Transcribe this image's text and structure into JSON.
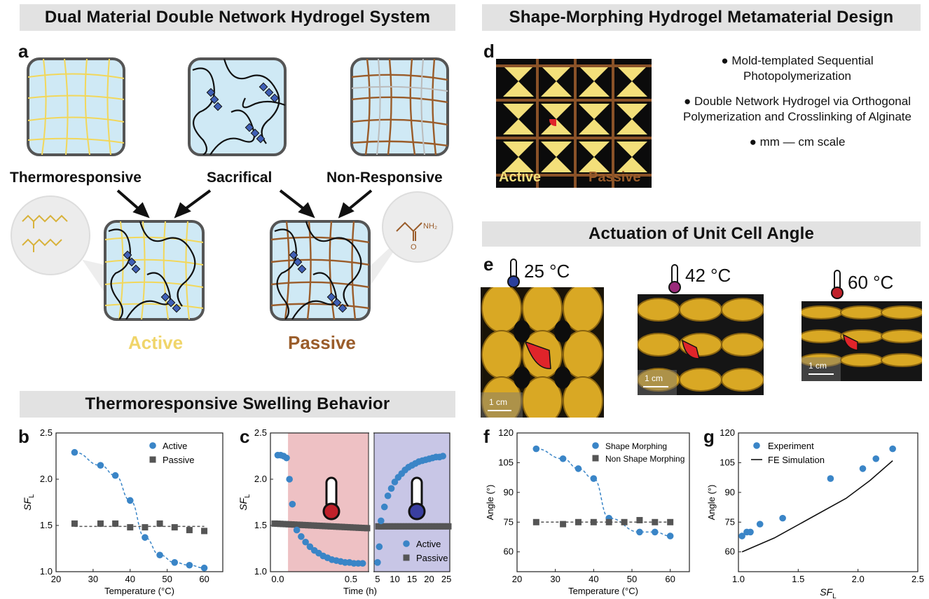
{
  "banners": {
    "top_left": "Dual Material Double Network Hydrogel System",
    "top_right": "Shape-Morphing Hydrogel Metamaterial Design",
    "bottom_left": "Thermoresponsive Swelling Behavior",
    "actuation": "Actuation of Unit Cell Angle"
  },
  "panel_labels": {
    "a": "a",
    "b": "b",
    "c": "c",
    "d": "d",
    "e": "e",
    "f": "f",
    "g": "g"
  },
  "panel_a": {
    "networks": [
      "Thermoresponsive",
      "Sacrifical",
      "Non-Responsive"
    ],
    "materials": {
      "active": "Active",
      "passive": "Passive"
    },
    "colors": {
      "active": "#f6e27a",
      "passive": "#9a5c2a",
      "gel": "#cfe9f5"
    },
    "monomer_label": "NH₂"
  },
  "panel_d": {
    "active_label": "Active",
    "passive_label": "Passive",
    "bullets": [
      "● Mold-templated Sequential Photopolymerization",
      "● Double Network Hydrogel via Orthogonal Polymerization and Crosslinking of Alginate",
      "● mm — cm scale"
    ]
  },
  "panel_e": {
    "temperatures": [
      "25 °C",
      "42 °C",
      "60 °C"
    ],
    "scale_bar": "1 cm"
  },
  "chart_data": [
    {
      "id": "b",
      "type": "scatter",
      "xlabel": "Temperature (°C)",
      "ylabel": "SF_L",
      "xlim": [
        20,
        65
      ],
      "ylim": [
        1.0,
        2.5
      ],
      "xticks": [
        20,
        30,
        40,
        50,
        60
      ],
      "yticks": [
        1.0,
        1.5,
        2.0,
        2.5
      ],
      "legend": "top-right",
      "series": [
        {
          "name": "Active",
          "marker": "circle",
          "color": "#3a85c7",
          "x": [
            25,
            32,
            36,
            40,
            44,
            48,
            52,
            56,
            60
          ],
          "y": [
            2.29,
            2.15,
            2.04,
            1.77,
            1.37,
            1.18,
            1.1,
            1.07,
            1.04
          ]
        },
        {
          "name": "Passive",
          "marker": "square",
          "color": "#555555",
          "x": [
            25,
            32,
            36,
            40,
            44,
            48,
            52,
            56,
            60
          ],
          "y": [
            1.52,
            1.52,
            1.52,
            1.48,
            1.48,
            1.52,
            1.48,
            1.45,
            1.44
          ]
        }
      ]
    },
    {
      "id": "c",
      "type": "scatter",
      "xlabel": "Time (h)",
      "ylabel": "SF_L",
      "ylim": [
        1.0,
        2.5
      ],
      "yticks": [
        1.0,
        1.5,
        2.0,
        2.5
      ],
      "xticks_left": [
        0.0,
        0.5
      ],
      "xticks_right": [
        5,
        10,
        15,
        20,
        25
      ],
      "legend": "bottom-right",
      "series": [
        {
          "name": "Active",
          "marker": "circle",
          "color": "#3a85c7",
          "x_left": [
            0.0,
            0.02,
            0.04,
            0.06,
            0.08,
            0.1,
            0.13,
            0.16,
            0.19,
            0.22,
            0.25,
            0.28,
            0.31,
            0.34,
            0.37,
            0.4,
            0.43,
            0.46,
            0.49,
            0.52,
            0.55,
            0.58
          ],
          "y_left": [
            2.26,
            2.26,
            2.25,
            2.23,
            2.0,
            1.73,
            1.45,
            1.38,
            1.32,
            1.27,
            1.23,
            1.2,
            1.17,
            1.15,
            1.13,
            1.12,
            1.11,
            1.1,
            1.1,
            1.09,
            1.09,
            1.09
          ],
          "x_right": [
            5,
            5.5,
            6,
            7,
            8,
            9,
            10,
            11,
            12,
            13,
            14,
            15,
            16,
            17,
            18,
            19,
            20,
            21,
            22,
            23,
            24
          ],
          "y_right": [
            1.1,
            1.27,
            1.55,
            1.7,
            1.82,
            1.9,
            1.97,
            2.02,
            2.06,
            2.1,
            2.13,
            2.15,
            2.17,
            2.19,
            2.2,
            2.21,
            2.22,
            2.23,
            2.24,
            2.24,
            2.25
          ]
        },
        {
          "name": "Passive",
          "marker": "square",
          "color": "#555555",
          "flat_value": 1.5
        }
      ]
    },
    {
      "id": "f",
      "type": "scatter",
      "xlabel": "Temperature (°C)",
      "ylabel": "Angle (°)",
      "xlim": [
        20,
        65
      ],
      "ylim": [
        50,
        120
      ],
      "xticks": [
        20,
        30,
        40,
        50,
        60
      ],
      "yticks": [
        60,
        75,
        90,
        105,
        120
      ],
      "legend": "top-right",
      "series": [
        {
          "name": "Shape Morphing",
          "marker": "circle",
          "color": "#3a85c7",
          "x": [
            25,
            32,
            36,
            40,
            44,
            52,
            56,
            60
          ],
          "y": [
            112,
            107,
            102,
            97,
            77,
            70,
            70,
            68
          ]
        },
        {
          "name": "Non Shape Morphing",
          "marker": "square",
          "color": "#555555",
          "x": [
            25,
            32,
            36,
            40,
            44,
            48,
            52,
            56,
            60
          ],
          "y": [
            75,
            74,
            75,
            75,
            75,
            75,
            76,
            75,
            75
          ]
        }
      ]
    },
    {
      "id": "g",
      "type": "scatter",
      "xlabel": "SF_L",
      "ylabel": "Angle (°)",
      "xlim": [
        1.0,
        2.5
      ],
      "ylim": [
        50,
        120
      ],
      "xticks": [
        1.0,
        1.5,
        2.0,
        2.5
      ],
      "yticks": [
        60,
        75,
        90,
        105,
        120
      ],
      "legend": "top-left",
      "series": [
        {
          "name": "Experiment",
          "marker": "circle",
          "color": "#3a85c7",
          "x": [
            1.03,
            1.07,
            1.1,
            1.18,
            1.37,
            1.77,
            2.04,
            2.15,
            2.29
          ],
          "y": [
            68,
            70,
            70,
            74,
            77,
            97,
            102,
            107,
            112
          ]
        },
        {
          "name": "FE Simulation",
          "line": true,
          "color": "#111111",
          "x": [
            1.03,
            1.3,
            1.6,
            1.9,
            2.1,
            2.29
          ],
          "y": [
            60,
            67,
            77,
            87,
            96,
            106
          ]
        }
      ]
    }
  ]
}
